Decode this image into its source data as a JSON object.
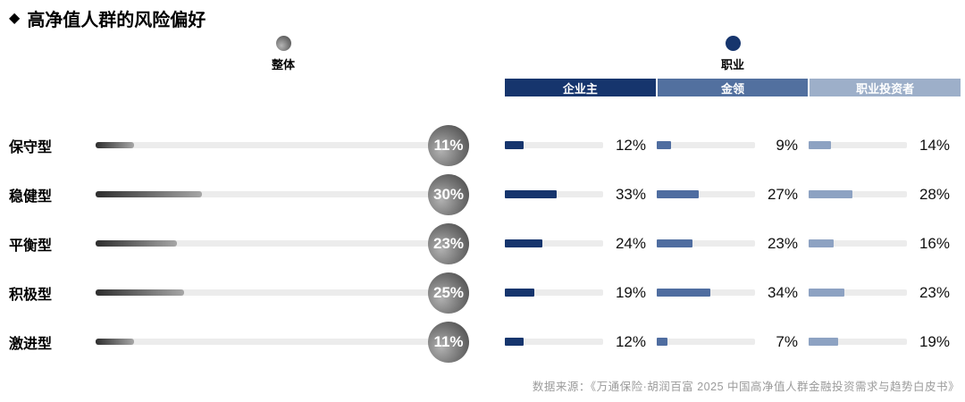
{
  "title": {
    "icon": "◆",
    "text": "高净值人群的风险偏好"
  },
  "legend": {
    "overall_label": "整体",
    "occupation_label": "职业"
  },
  "columns": [
    {
      "label": "企业主",
      "color": "#16356d"
    },
    {
      "label": "金领",
      "color": "#52709f"
    },
    {
      "label": "职业投资者",
      "color": "#9dafc9"
    }
  ],
  "mini_fill_colors": [
    "#16356d",
    "#4f6da0",
    "#8da2c2"
  ],
  "rows": [
    {
      "label": "保守型",
      "overall_pct": 11,
      "overall_text": "11%",
      "values": [
        {
          "pct": 12,
          "text": "12%"
        },
        {
          "pct": 9,
          "text": "9%"
        },
        {
          "pct": 14,
          "text": "14%"
        }
      ]
    },
    {
      "label": "稳健型",
      "overall_pct": 30,
      "overall_text": "30%",
      "values": [
        {
          "pct": 33,
          "text": "33%"
        },
        {
          "pct": 27,
          "text": "27%"
        },
        {
          "pct": 28,
          "text": "28%"
        }
      ]
    },
    {
      "label": "平衡型",
      "overall_pct": 23,
      "overall_text": "23%",
      "values": [
        {
          "pct": 24,
          "text": "24%"
        },
        {
          "pct": 23,
          "text": "23%"
        },
        {
          "pct": 16,
          "text": "16%"
        }
      ]
    },
    {
      "label": "积极型",
      "overall_pct": 25,
      "overall_text": "25%",
      "values": [
        {
          "pct": 19,
          "text": "19%"
        },
        {
          "pct": 34,
          "text": "34%"
        },
        {
          "pct": 23,
          "text": "23%"
        }
      ]
    },
    {
      "label": "激进型",
      "overall_pct": 11,
      "overall_text": "11%",
      "values": [
        {
          "pct": 12,
          "text": "12%"
        },
        {
          "pct": 7,
          "text": "7%"
        },
        {
          "pct": 19,
          "text": "19%"
        }
      ]
    }
  ],
  "source": "数据来源：《万通保险·胡润百富 2025 中国高净值人群金融投资需求与趋势白皮书》",
  "chart_data": {
    "type": "bar",
    "title": "高净值人群的风险偏好",
    "categories": [
      "保守型",
      "稳健型",
      "平衡型",
      "积极型",
      "激进型"
    ],
    "series": [
      {
        "name": "整体",
        "values": [
          11,
          30,
          23,
          25,
          11
        ]
      },
      {
        "name": "企业主",
        "values": [
          12,
          33,
          24,
          19,
          12
        ]
      },
      {
        "name": "金领",
        "values": [
          9,
          27,
          23,
          34,
          7
        ]
      },
      {
        "name": "职业投资者",
        "values": [
          14,
          28,
          16,
          23,
          19
        ]
      }
    ],
    "unit": "%",
    "orientation": "horizontal",
    "xlabel": "",
    "ylabel": "",
    "legend_position": "top",
    "grid": false,
    "source": "数据来源：《万通保险·胡润百富 2025 中国高净值人群金融投资需求与趋势白皮书》"
  }
}
